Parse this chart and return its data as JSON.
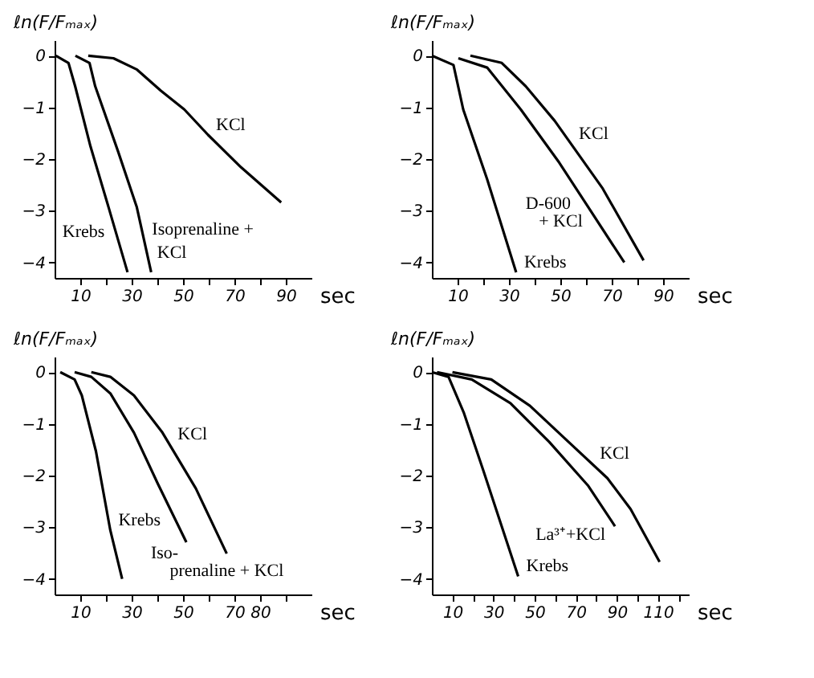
{
  "chart_data": [
    {
      "type": "line",
      "ylabel": "ℓn(F/Fₘₐₓ)",
      "xlabel": "sec",
      "xlim": [
        0,
        100
      ],
      "ylim": [
        -4.3,
        0.3
      ],
      "yticks": [
        0,
        -1,
        -2,
        -3,
        -4
      ],
      "xticks": [
        10,
        {
          "value": 20,
          "label": null
        },
        30,
        {
          "value": 40,
          "label": null
        },
        50,
        {
          "value": 60,
          "label": null
        },
        70,
        {
          "value": 80,
          "label": null
        },
        90
      ],
      "grid": false,
      "marker": "none",
      "series": [
        {
          "color": "#000000",
          "x": [
            0.5,
            5.4,
            8.0,
            14,
            21,
            28.4
          ],
          "values": [
            0,
            -0.14,
            -0.59,
            -1.76,
            -2.93,
            -4.19
          ]
        },
        {
          "color": "#000000",
          "x": [
            8.1,
            13.6,
            15.8,
            24.7,
            32.0,
            37.6
          ],
          "values": [
            0,
            -0.14,
            -0.59,
            -1.85,
            -2.93,
            -4.19
          ]
        },
        {
          "color": "#000000",
          "x": [
            13.1,
            22.9,
            32.1,
            41.4,
            50.5,
            59.7,
            72.6,
            88.2
          ],
          "values": [
            0,
            -0.05,
            -0.27,
            -0.68,
            -1.04,
            -1.53,
            -2.16,
            -2.84
          ]
        }
      ],
      "annotations": [
        {
          "text": "KCl",
          "x": 59.7,
          "y": -1.53
        },
        {
          "text": "Krebs",
          "x": 22.6,
          "y": -3.2
        },
        {
          "text": "Isoprenaline +",
          "x": 34.8,
          "y": -3.56
        },
        {
          "text": "KCl",
          "x": 36.8,
          "y": -4.0
        }
      ]
    },
    {
      "type": "line",
      "ylabel": "ℓn(F/Fₘₐₓ)",
      "xlabel": "sec",
      "xlim": [
        0,
        100
      ],
      "ylim": [
        -4.3,
        0.3
      ],
      "yticks": [
        0,
        -1,
        -2,
        -3,
        -4
      ],
      "xticks": [
        10,
        {
          "value": 20,
          "label": null
        },
        30,
        {
          "value": 40,
          "label": null
        },
        50,
        {
          "value": 60,
          "label": null
        },
        70,
        {
          "value": 80,
          "label": null
        },
        90
      ],
      "grid": false,
      "marker": "none",
      "series": [
        {
          "color": "#000000",
          "x": [
            0,
            8.4,
            12.2,
            21.5,
            32.8
          ],
          "values": [
            0,
            -0.18,
            -1.04,
            -2.39,
            -4.19
          ]
        },
        {
          "color": "#000000",
          "x": [
            10.3,
            21.5,
            34.6,
            49.6,
            74.9
          ],
          "values": [
            -0.05,
            -0.23,
            -1.04,
            -2.07,
            -4.0
          ]
        },
        {
          "color": "#000000",
          "x": [
            15,
            27.2,
            36.5,
            47.8,
            66.5,
            82.4
          ],
          "values": [
            0,
            -0.14,
            -0.59,
            -1.26,
            -2.57,
            -3.96
          ]
        }
      ],
      "annotations": [
        {
          "text": "KCl",
          "x": 54.1,
          "y": -1.7
        },
        {
          "text": "D-600",
          "x": 57.2,
          "y": -2.65
        },
        {
          "text": "+ KCl",
          "x": 61.8,
          "y": -3.0
        },
        {
          "text": "Krebs",
          "x": 32.8,
          "y": -4.19
        }
      ]
    },
    {
      "type": "line",
      "ylabel": "ℓn(F/Fₘₐₓ)",
      "xlabel": "sec",
      "xlim": [
        0,
        100
      ],
      "ylim": [
        -4.3,
        0.3
      ],
      "yticks": [
        0,
        -1,
        -2,
        -3,
        -4
      ],
      "xticks": [
        10,
        {
          "value": 20,
          "label": null
        },
        30,
        {
          "value": 40,
          "label": null
        },
        50,
        {
          "value": 60,
          "label": null
        },
        70,
        80,
        {
          "value": 90,
          "label": null
        }
      ],
      "grid": false,
      "marker": "none",
      "series": [
        {
          "color": "#000000",
          "x": [
            2.2,
            7.8,
            10.6,
            16.1,
            21.7,
            26.3
          ],
          "values": [
            0,
            -0.14,
            -0.45,
            -1.53,
            -3.06,
            -4.0
          ]
        },
        {
          "color": "#000000",
          "x": [
            7.8,
            14.3,
            21.7,
            30.9,
            40.2,
            51.3
          ],
          "values": [
            0,
            -0.09,
            -0.41,
            -1.17,
            -2.16,
            -3.29
          ]
        },
        {
          "color": "#000000",
          "x": [
            14.3,
            21.7,
            30.9,
            42,
            55,
            67
          ],
          "values": [
            0,
            -0.09,
            -0.45,
            -1.17,
            -2.25,
            -3.51
          ]
        }
      ],
      "annotations": [
        {
          "text": "KCl",
          "x": 44.8,
          "y": -1.4
        },
        {
          "text": "Krebs",
          "x": 21.7,
          "y": -3.06
        },
        {
          "text": "Iso-",
          "x": 51.3,
          "y": -3.29
        },
        {
          "text": "prenaline + KCl",
          "x": 67,
          "y": -3.51
        }
      ]
    },
    {
      "type": "line",
      "ylabel": "ℓn(F/Fₘₐₓ)",
      "xlabel": "sec",
      "xlim": [
        0,
        125
      ],
      "ylim": [
        -4.3,
        0.3
      ],
      "yticks": [
        0,
        -1,
        -2,
        -3,
        -4
      ],
      "xticks": [
        10,
        {
          "value": 20,
          "label": null
        },
        30,
        {
          "value": 40,
          "label": null
        },
        50,
        {
          "value": 60,
          "label": null
        },
        70,
        {
          "value": 80,
          "label": null
        },
        90,
        {
          "value": 100,
          "label": null
        },
        110,
        {
          "value": 120,
          "label": null
        }
      ],
      "grid": false,
      "marker": "none",
      "series": [
        {
          "color": "#000000",
          "x": [
            0,
            8.1,
            15.6,
            25.1,
            42
          ],
          "values": [
            0,
            -0.09,
            -0.79,
            -1.91,
            -3.95
          ]
        },
        {
          "color": "#000000",
          "x": [
            2.5,
            19.4,
            38.2,
            57.1,
            75.9,
            89.1
          ],
          "values": [
            0,
            -0.14,
            -0.6,
            -1.35,
            -2.19,
            -2.98
          ]
        },
        {
          "color": "#000000",
          "x": [
            10,
            28.9,
            47.7,
            66.5,
            85.4,
            96.7,
            110.8
          ],
          "values": [
            0,
            -0.14,
            -0.65,
            -1.35,
            -2.05,
            -2.65,
            -3.67
          ]
        }
      ],
      "annotations": [
        {
          "text": "KCl",
          "x": 77.8,
          "y": -1.77
        },
        {
          "text": "La³⁺+KCl",
          "x": 88.3,
          "y": -2.93
        },
        {
          "text": "Krebs",
          "x": 42,
          "y": -3.95
        }
      ]
    }
  ]
}
